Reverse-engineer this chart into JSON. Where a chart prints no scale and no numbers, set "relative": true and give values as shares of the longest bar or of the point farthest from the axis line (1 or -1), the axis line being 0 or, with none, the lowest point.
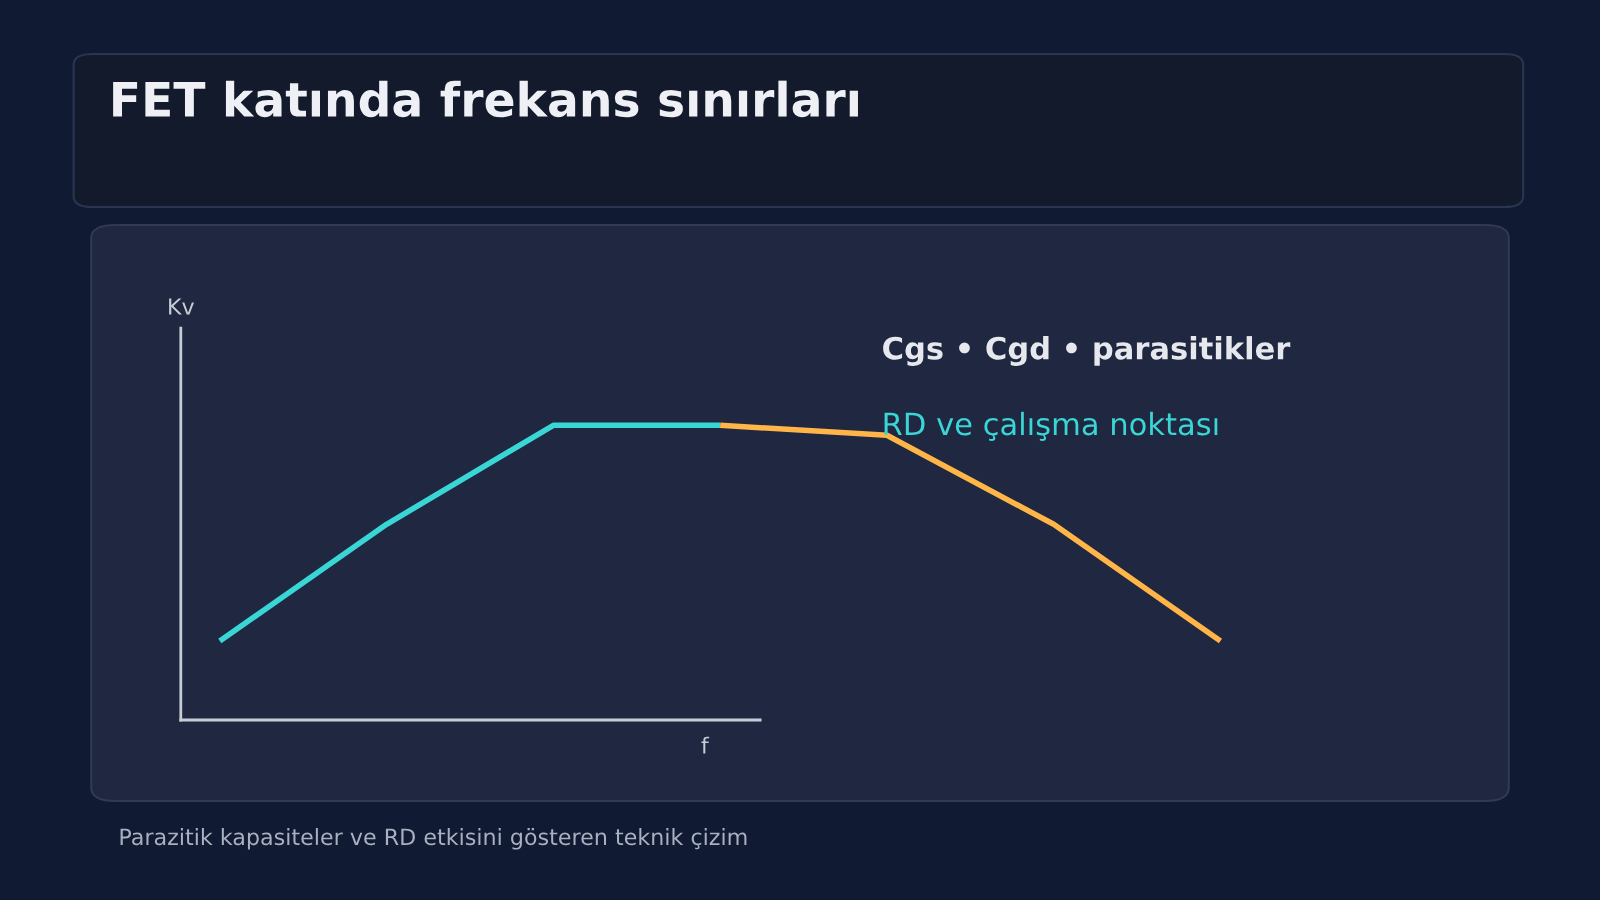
{
  "chart_data": {
    "type": "line",
    "title": "FET katında frekans sınırları",
    "xlabel": "f",
    "ylabel": "Kv",
    "relative": true,
    "categories": [
      null,
      null,
      null,
      null,
      null,
      null,
      null
    ],
    "series": [
      {
        "color": "#3ad6d6",
        "values": [
          0.268,
          0.664,
          1,
          1,
          null,
          null,
          null
        ]
      },
      {
        "color": "#ffb547",
        "values": [
          null,
          null,
          null,
          1,
          0.966,
          0.664,
          0.268
        ]
      }
    ],
    "annotations": [
      "Cgs • Cgd • parasitikler",
      "RD ve çalışma noktası",
      "Parazitik kapasiteler ve RD etkisini gösteren teknik çizim"
    ],
    "grid": false,
    "marker": "none",
    "line_style": "solid"
  }
}
